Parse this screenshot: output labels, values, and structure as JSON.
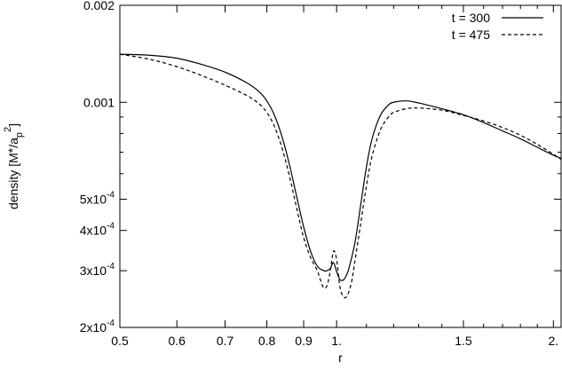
{
  "chart_data": {
    "type": "line",
    "title": "",
    "xlabel": "r",
    "ylabel_main": "density  [M",
    "ylabel_star": "*",
    "ylabel_mid": "/a",
    "ylabel_sub": "p",
    "ylabel_sup": "2",
    "ylabel_end": "]",
    "x_scale": "log",
    "y_scale": "log",
    "xlim": [
      0.5,
      2.05
    ],
    "ylim": [
      0.0002,
      0.002
    ],
    "grid": false,
    "legend_position": "top-right",
    "x_ticks": [
      {
        "value": 0.5,
        "label": "0.5"
      },
      {
        "value": 0.6,
        "label": "0.6"
      },
      {
        "value": 0.7,
        "label": "0.7"
      },
      {
        "value": 0.8,
        "label": "0.8"
      },
      {
        "value": 0.9,
        "label": "0.9"
      },
      {
        "value": 1.0,
        "label": "1."
      },
      {
        "value": 1.5,
        "label": "1.5"
      },
      {
        "value": 2.0,
        "label": "2."
      }
    ],
    "x_minor_ticks": [
      1.1,
      1.2,
      1.3,
      1.4,
      1.6,
      1.7,
      1.8,
      1.9
    ],
    "y_ticks": [
      {
        "value": 0.0002,
        "mant": "2x10",
        "exp": "-4",
        "label": ""
      },
      {
        "value": 0.0003,
        "mant": "3x10",
        "exp": "-4",
        "label": ""
      },
      {
        "value": 0.0004,
        "mant": "4x10",
        "exp": "-4",
        "label": ""
      },
      {
        "value": 0.0005,
        "mant": "5x10",
        "exp": "-4",
        "label": ""
      },
      {
        "value": 0.001,
        "mant": "",
        "exp": "",
        "label": "0.001"
      },
      {
        "value": 0.002,
        "mant": "",
        "exp": "",
        "label": "0.002"
      }
    ],
    "y_minor_ticks": [
      0.0006,
      0.0007,
      0.0008,
      0.0009
    ],
    "series": [
      {
        "name": "t = 300",
        "dash": "solid",
        "x": [
          0.5,
          0.55,
          0.6,
          0.65,
          0.7,
          0.75,
          0.78,
          0.8,
          0.82,
          0.84,
          0.86,
          0.88,
          0.9,
          0.92,
          0.94,
          0.96,
          0.97,
          0.98,
          0.99,
          1.0,
          1.01,
          1.02,
          1.03,
          1.04,
          1.06,
          1.08,
          1.1,
          1.12,
          1.15,
          1.18,
          1.2,
          1.25,
          1.3,
          1.4,
          1.5,
          1.6,
          1.7,
          1.8,
          1.9,
          2.0,
          2.05
        ],
        "values": [
          0.00141,
          0.0014,
          0.00137,
          0.00131,
          0.00124,
          0.00115,
          0.00108,
          0.00101,
          0.00091,
          0.00078,
          0.00064,
          0.00051,
          0.00041,
          0.000345,
          0.00031,
          0.0003,
          0.0003,
          0.000305,
          0.000318,
          0.000298,
          0.000282,
          0.00028,
          0.000288,
          0.000305,
          0.000365,
          0.00048,
          0.00063,
          0.00077,
          0.00091,
          0.00098,
          0.001,
          0.00101,
          0.000995,
          0.000955,
          0.000915,
          0.000865,
          0.000815,
          0.00077,
          0.000725,
          0.000685,
          0.00067
        ]
      },
      {
        "name": "t = 475",
        "dash": "dashed",
        "x": [
          0.5,
          0.55,
          0.6,
          0.65,
          0.7,
          0.75,
          0.78,
          0.8,
          0.82,
          0.84,
          0.86,
          0.88,
          0.9,
          0.92,
          0.94,
          0.95,
          0.96,
          0.97,
          0.98,
          0.99,
          1.0,
          1.01,
          1.02,
          1.03,
          1.04,
          1.05,
          1.06,
          1.08,
          1.1,
          1.12,
          1.15,
          1.18,
          1.2,
          1.25,
          1.3,
          1.4,
          1.5,
          1.6,
          1.7,
          1.8,
          1.9,
          2.0,
          2.05
        ],
        "values": [
          0.00141,
          0.00136,
          0.00129,
          0.00121,
          0.00113,
          0.00105,
          0.00099,
          0.00093,
          0.00084,
          0.00072,
          0.00059,
          0.00047,
          0.00038,
          0.00033,
          0.0003,
          0.00028,
          0.000265,
          0.00027,
          0.0003,
          0.000345,
          0.000325,
          0.00027,
          0.00025,
          0.000248,
          0.000258,
          0.00028,
          0.00032,
          0.00042,
          0.00055,
          0.00068,
          0.00082,
          0.0009,
          0.00093,
          0.000955,
          0.00096,
          0.000945,
          0.00091,
          0.000875,
          0.000835,
          0.00079,
          0.00074,
          0.00069,
          0.000665
        ]
      }
    ]
  }
}
